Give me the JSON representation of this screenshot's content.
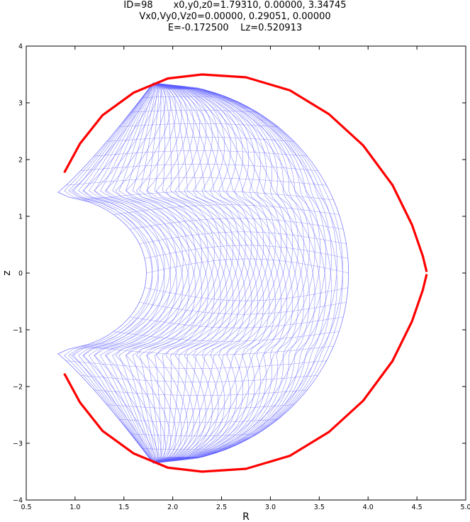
{
  "title_lines": [
    "ID=98       x0,y0,z0=1.79310, 0.00000, 3.34745",
    "Vx0,Vy0,Vz0=0.00000, 0.29051, 0.00000",
    "E=-0.172500    Lz=0.520913"
  ],
  "chart_data": {
    "type": "line",
    "xlabel": "R",
    "ylabel": "z",
    "xlim": [
      0.5,
      5.0
    ],
    "ylim": [
      -4,
      4
    ],
    "xticks": [
      "0.5",
      "1.0",
      "1.5",
      "2.0",
      "2.5",
      "3.0",
      "3.5",
      "4.0",
      "4.5",
      "5.0"
    ],
    "yticks": [
      "4",
      "3",
      "2",
      "1",
      "0",
      "−1",
      "−2",
      "−3",
      "−4"
    ],
    "grid": false,
    "series": [
      {
        "kind": "orbit",
        "color": "#5b5bff",
        "R_min": 0.76,
        "R_max": 3.8,
        "z_min": -3.35,
        "z_max": 3.35,
        "cusp_R": 0.77,
        "cusp_z": 1.36,
        "notch_R": 1.73
      },
      {
        "kind": "zero-velocity-curve",
        "color": "#ff0000",
        "points": [
          [
            0.89,
            1.77
          ],
          [
            1.05,
            2.28
          ],
          [
            1.28,
            2.78
          ],
          [
            1.6,
            3.18
          ],
          [
            1.95,
            3.43
          ],
          [
            2.3,
            3.5
          ],
          [
            2.75,
            3.45
          ],
          [
            3.2,
            3.22
          ],
          [
            3.6,
            2.8
          ],
          [
            3.95,
            2.25
          ],
          [
            4.25,
            1.55
          ],
          [
            4.45,
            0.85
          ],
          [
            4.56,
            0.3
          ],
          [
            4.6,
            0.02
          ]
        ],
        "mirror_about_z0": true
      }
    ]
  }
}
